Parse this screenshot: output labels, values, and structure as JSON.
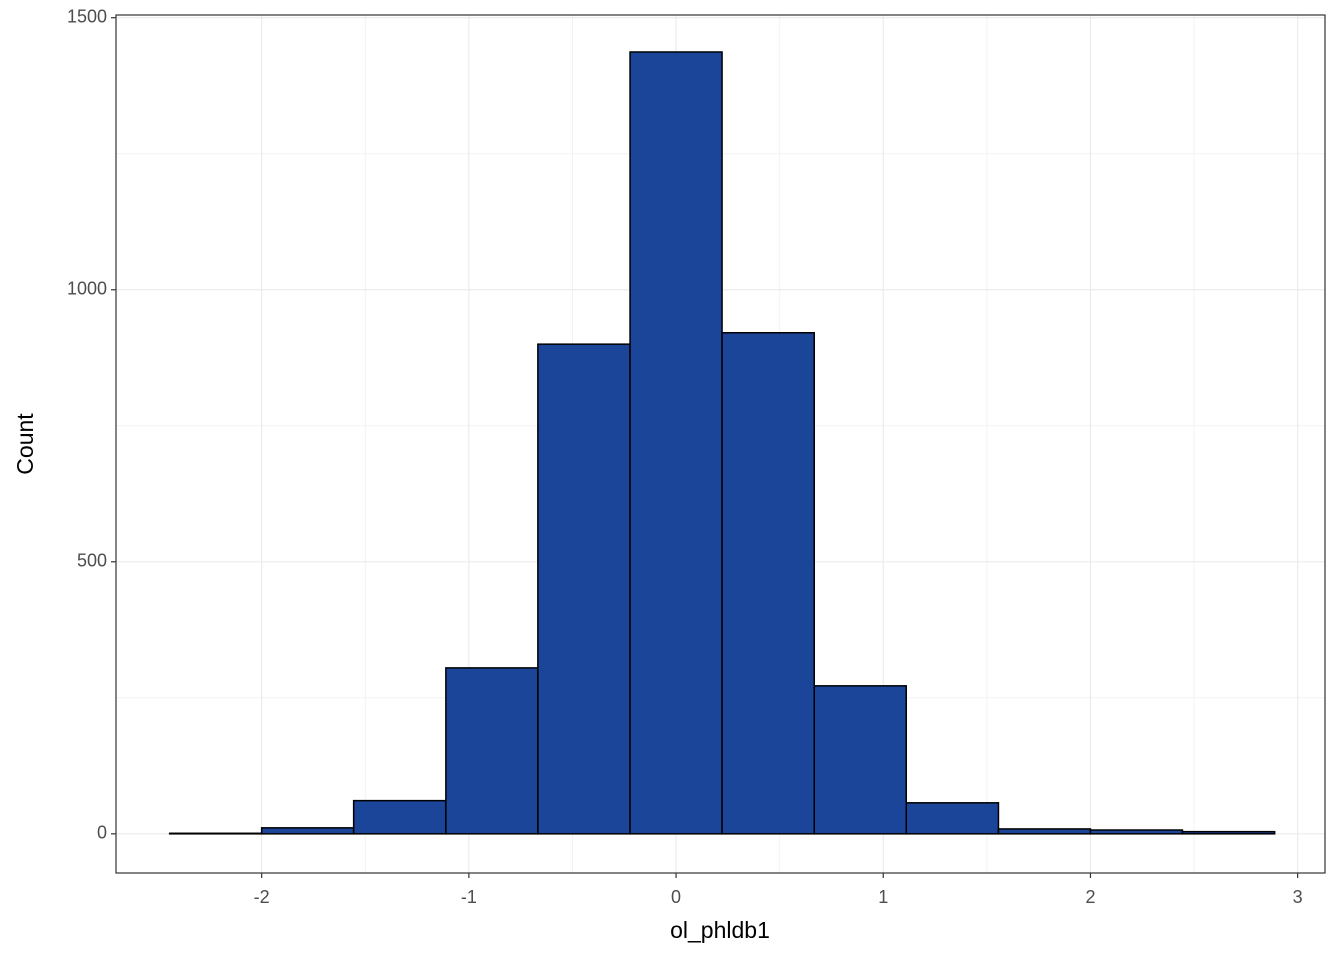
{
  "chart_data": {
    "type": "histogram",
    "x_label": "ol_phldb1",
    "y_label": "Count",
    "bins": [
      -2.444,
      -2.0,
      -1.556,
      -1.111,
      -0.667,
      -0.222,
      0.222,
      0.667,
      1.111,
      1.556,
      2.0,
      2.444,
      2.889
    ],
    "values": [
      1,
      11,
      61,
      305,
      900,
      1437,
      921,
      272,
      57,
      9,
      7,
      4
    ],
    "color": "#1a4599",
    "edge_color": "#000000",
    "xlim": [
      -2.703,
      3.132
    ],
    "ylim": [
      -72,
      1505
    ],
    "xticks": [
      -2,
      -1,
      0,
      1,
      2,
      3
    ],
    "yticks": [
      0,
      500,
      1000,
      1500
    ],
    "grid": true
  }
}
